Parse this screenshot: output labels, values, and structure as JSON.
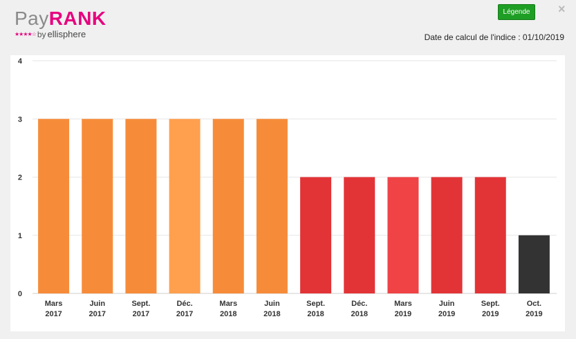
{
  "logo": {
    "pay": "Pay",
    "rank": "RANK",
    "stars": "★★★★☆",
    "by": "by",
    "brand": "ellisphere"
  },
  "legend_button": {
    "label": "Légende",
    "color": "#1e9e24"
  },
  "close_icon": "×",
  "calc_date": "Date de calcul de l'indice : 01/10/2019",
  "chart_data": {
    "type": "bar",
    "categories": [
      [
        "Mars",
        "2017"
      ],
      [
        "Juin",
        "2017"
      ],
      [
        "Sept.",
        "2017"
      ],
      [
        "Déc.",
        "2017"
      ],
      [
        "Mars",
        "2018"
      ],
      [
        "Juin",
        "2018"
      ],
      [
        "Sept.",
        "2018"
      ],
      [
        "Déc.",
        "2018"
      ],
      [
        "Mars",
        "2019"
      ],
      [
        "Juin",
        "2019"
      ],
      [
        "Sept.",
        "2019"
      ],
      [
        "Oct.",
        "2019"
      ]
    ],
    "values": [
      3,
      3,
      3,
      3,
      3,
      3,
      2,
      2,
      2,
      2,
      2,
      1
    ],
    "colors": [
      "#f68c3a",
      "#f68c3a",
      "#f68c3a",
      "#ffa04f",
      "#f68c3a",
      "#f68c3a",
      "#e23437",
      "#e23437",
      "#ef4346",
      "#e23437",
      "#e23437",
      "#333333"
    ],
    "title": "",
    "xlabel": "",
    "ylabel": "",
    "ylim": [
      0,
      4
    ],
    "yticks": [
      0,
      1,
      2,
      3,
      4
    ],
    "grid": true
  }
}
